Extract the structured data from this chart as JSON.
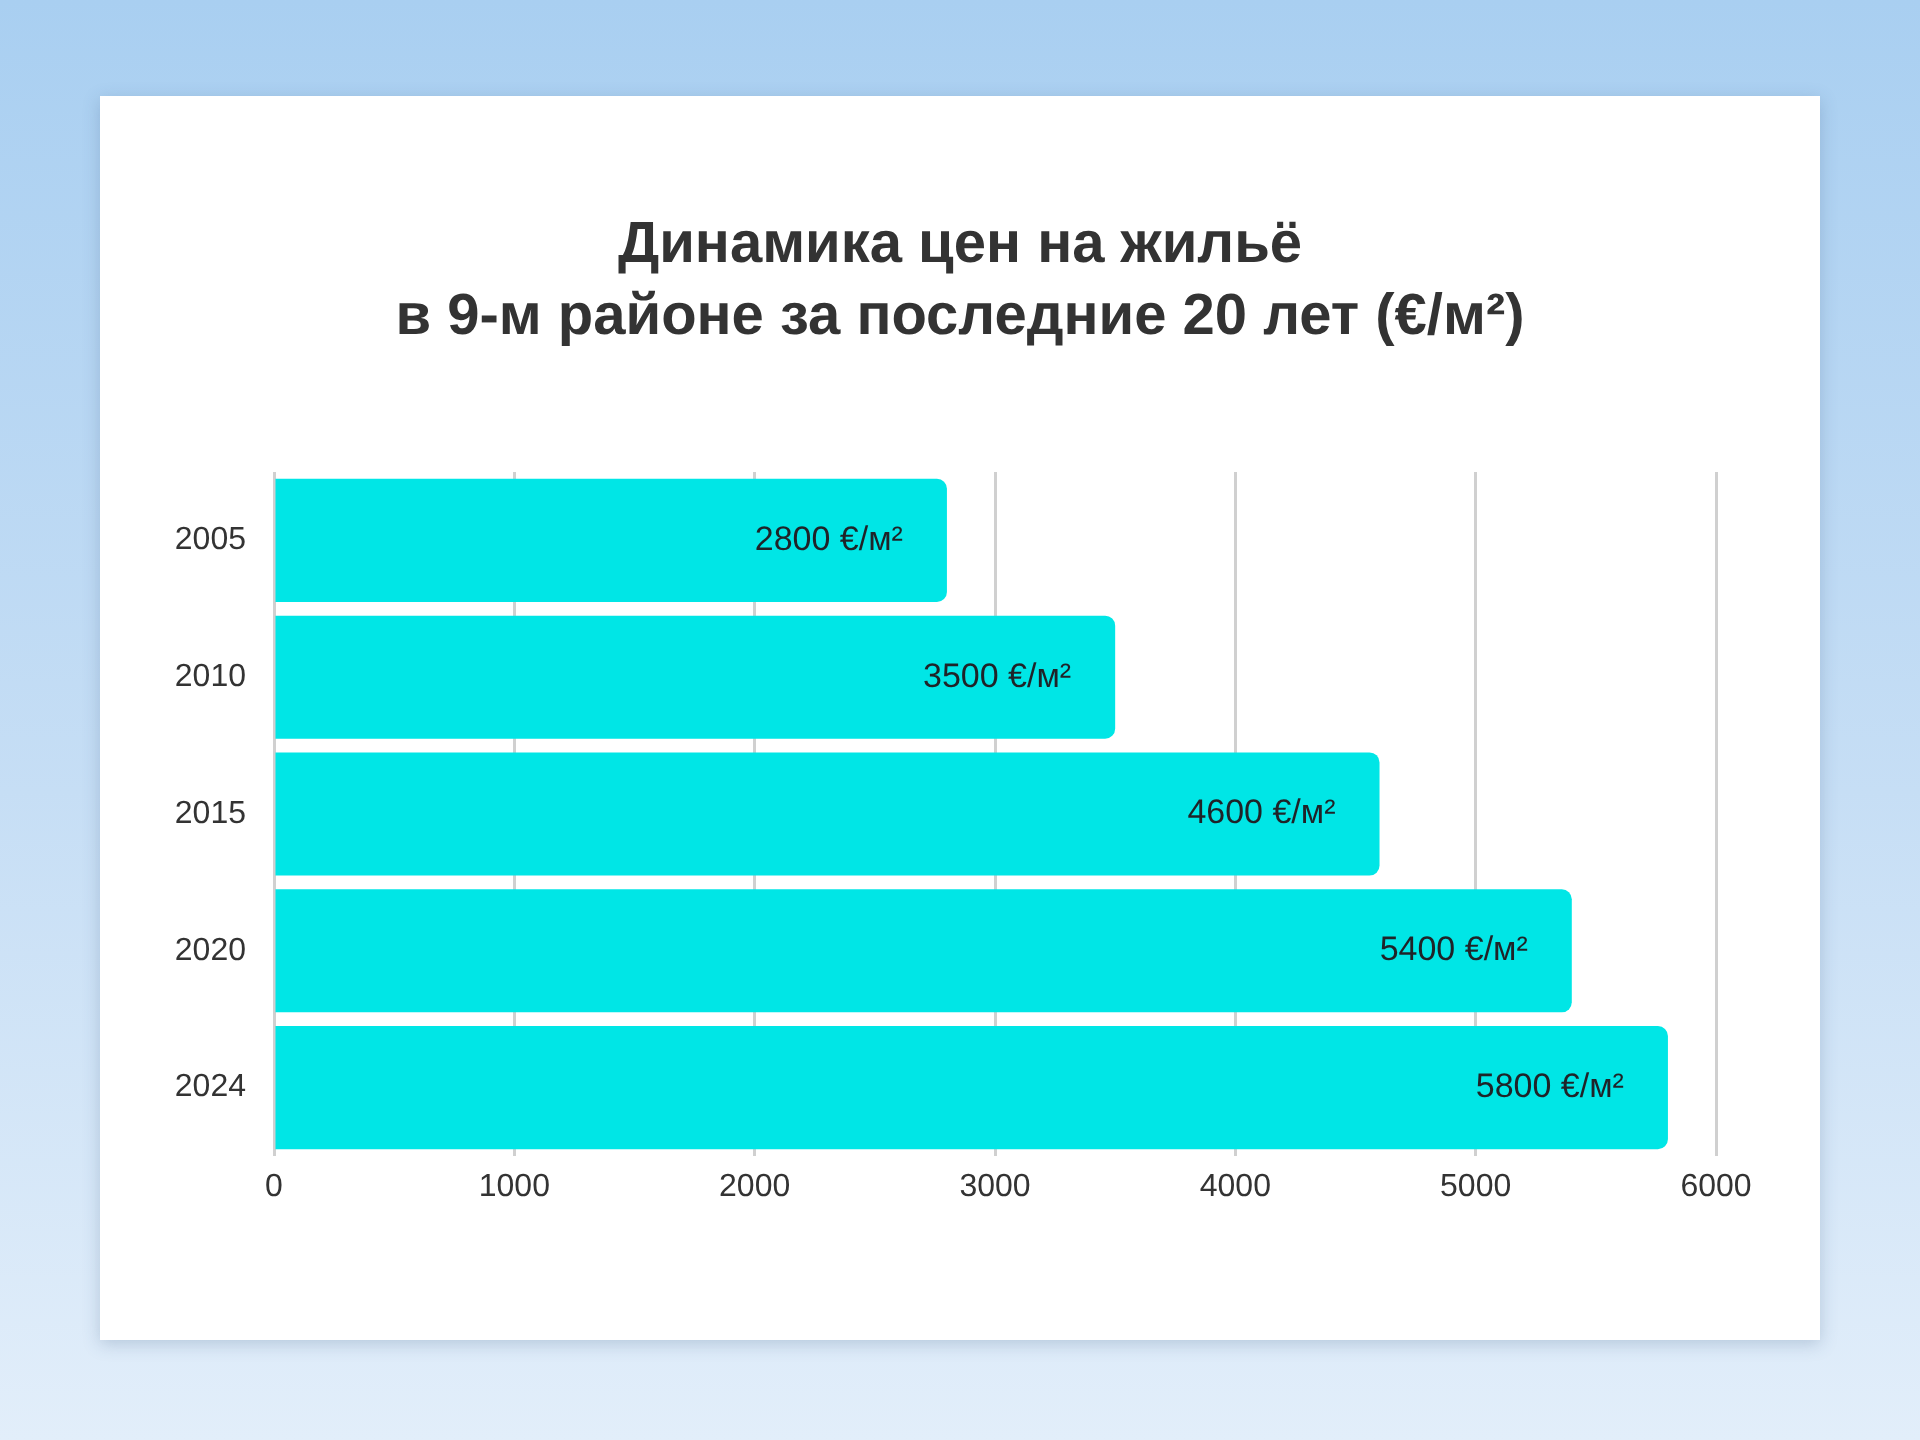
{
  "chart_data": {
    "type": "bar",
    "orientation": "horizontal",
    "title": "Динамика цен на жильё\nв 9-м районе за последние 20 лет (€/м²)",
    "categories": [
      "2005",
      "2010",
      "2015",
      "2020",
      "2024"
    ],
    "values": [
      2800,
      3500,
      4600,
      5400,
      5800
    ],
    "value_labels": [
      "2800 €/м²",
      "3500 €/м²",
      "4600 €/м²",
      "5400 €/м²",
      "5800 €/м²"
    ],
    "color": "#00e6e6",
    "xlim": [
      0,
      6000
    ],
    "xticks": [
      0,
      1000,
      2000,
      3000,
      4000,
      5000,
      6000
    ],
    "grid": "x"
  }
}
